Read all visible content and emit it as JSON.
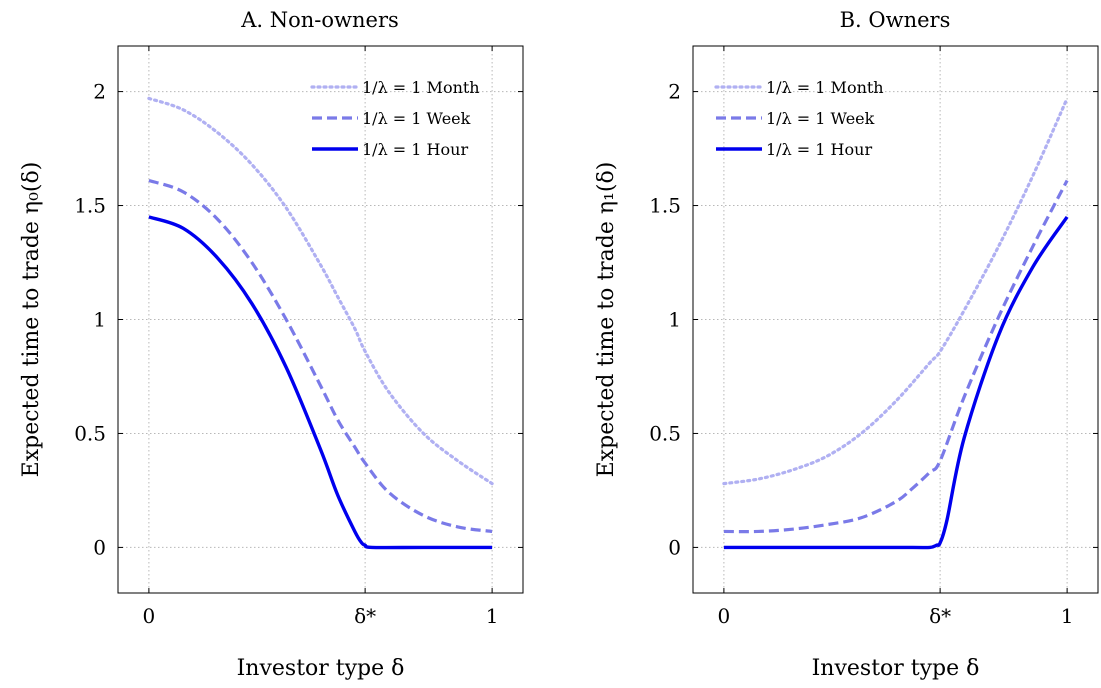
{
  "chart_data": [
    {
      "type": "line",
      "title": "A. Non-owners",
      "xlabel": "Investor type δ",
      "ylabel": "Expected time to trade η₀(δ)",
      "xlim": [
        -0.09,
        1.09
      ],
      "ylim": [
        -0.2,
        2.2
      ],
      "x_ticks": [
        {
          "value": 0,
          "label": "0"
        },
        {
          "value": 0.63,
          "label": "δ*"
        },
        {
          "value": 1,
          "label": "1"
        }
      ],
      "y_ticks": [
        {
          "value": 0,
          "label": "0"
        },
        {
          "value": 0.5,
          "label": "0.5"
        },
        {
          "value": 1,
          "label": "1"
        },
        {
          "value": 1.5,
          "label": "1.5"
        },
        {
          "value": 2,
          "label": "2"
        }
      ],
      "grid": true,
      "legend_position": "top-right",
      "series": [
        {
          "name": "1/λ = 1 Month",
          "style": "dotted",
          "color": "#b0b0f2",
          "x": [
            0,
            0.1,
            0.2,
            0.3,
            0.4,
            0.5,
            0.55,
            0.6,
            0.63,
            0.7,
            0.8,
            0.9,
            1.0
          ],
          "y": [
            1.97,
            1.92,
            1.82,
            1.68,
            1.49,
            1.24,
            1.1,
            0.96,
            0.86,
            0.68,
            0.5,
            0.38,
            0.28
          ]
        },
        {
          "name": "1/λ = 1 Week",
          "style": "dashed",
          "color": "#7a7ae8",
          "x": [
            0,
            0.1,
            0.2,
            0.3,
            0.4,
            0.5,
            0.55,
            0.6,
            0.63,
            0.7,
            0.8,
            0.9,
            1.0
          ],
          "y": [
            1.61,
            1.56,
            1.44,
            1.25,
            1.0,
            0.71,
            0.56,
            0.44,
            0.37,
            0.24,
            0.14,
            0.09,
            0.07
          ]
        },
        {
          "name": "1/λ = 1 Hour",
          "style": "solid",
          "color": "#0000ee",
          "x": [
            0,
            0.1,
            0.2,
            0.3,
            0.4,
            0.5,
            0.55,
            0.6,
            0.62,
            0.63,
            0.65,
            0.8,
            1.0
          ],
          "y": [
            1.45,
            1.4,
            1.27,
            1.07,
            0.79,
            0.43,
            0.23,
            0.07,
            0.02,
            0.01,
            0.0,
            0.0,
            0.0
          ]
        }
      ]
    },
    {
      "type": "line",
      "title": "B. Owners",
      "xlabel": "Investor type δ",
      "ylabel": "Expected time to trade η₁(δ)",
      "xlim": [
        -0.09,
        1.09
      ],
      "ylim": [
        -0.2,
        2.2
      ],
      "x_ticks": [
        {
          "value": 0,
          "label": "0"
        },
        {
          "value": 0.63,
          "label": "δ*"
        },
        {
          "value": 1,
          "label": "1"
        }
      ],
      "y_ticks": [
        {
          "value": 0,
          "label": "0"
        },
        {
          "value": 0.5,
          "label": "0.5"
        },
        {
          "value": 1,
          "label": "1"
        },
        {
          "value": 1.5,
          "label": "1.5"
        },
        {
          "value": 2,
          "label": "2"
        }
      ],
      "grid": true,
      "legend_position": "top-left",
      "series": [
        {
          "name": "1/λ = 1 Month",
          "style": "dotted",
          "color": "#b0b0f2",
          "x": [
            0,
            0.1,
            0.2,
            0.3,
            0.4,
            0.5,
            0.6,
            0.63,
            0.7,
            0.8,
            0.9,
            1.0
          ],
          "y": [
            0.28,
            0.3,
            0.34,
            0.4,
            0.5,
            0.64,
            0.81,
            0.86,
            1.04,
            1.32,
            1.63,
            1.97
          ]
        },
        {
          "name": "1/λ = 1 Week",
          "style": "dashed",
          "color": "#7a7ae8",
          "x": [
            0,
            0.1,
            0.2,
            0.3,
            0.4,
            0.5,
            0.55,
            0.6,
            0.63,
            0.7,
            0.8,
            0.9,
            1.0
          ],
          "y": [
            0.07,
            0.07,
            0.08,
            0.1,
            0.13,
            0.2,
            0.26,
            0.33,
            0.38,
            0.66,
            1.01,
            1.32,
            1.61
          ]
        },
        {
          "name": "1/λ = 1 Hour",
          "style": "solid",
          "color": "#0000ee",
          "x": [
            0,
            0.2,
            0.4,
            0.55,
            0.6,
            0.62,
            0.63,
            0.65,
            0.7,
            0.8,
            0.9,
            1.0
          ],
          "y": [
            0.0,
            0.0,
            0.0,
            0.0,
            0.0,
            0.01,
            0.02,
            0.12,
            0.48,
            0.93,
            1.23,
            1.45
          ]
        }
      ]
    }
  ]
}
